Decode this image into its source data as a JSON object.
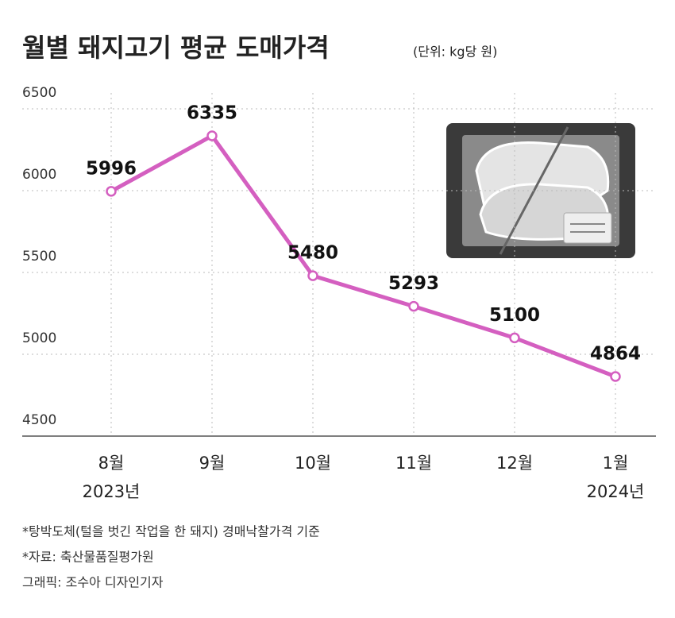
{
  "chart_data": {
    "type": "line",
    "title": "월별 돼지고기 평균 도매가격",
    "subtitle": "(단위: kg당 원)",
    "categories": [
      "8월",
      "9월",
      "10월",
      "11월",
      "12월",
      "1월"
    ],
    "year_labels": [
      "2023년",
      null,
      null,
      null,
      null,
      "2024년"
    ],
    "values": [
      5996,
      6335,
      5480,
      5293,
      5100,
      4864
    ],
    "color": "#d45fc0",
    "ylim": [
      4500,
      6500
    ],
    "yticks": [
      4500,
      5000,
      5500,
      6000,
      6500
    ],
    "grid": true,
    "notes": [
      "*탕박도체(털을 벗긴 작업을 한 돼지) 경매낙찰가격 기준",
      "*자료: 축산물품질평가원",
      "그래픽: 조수아 디자인기자"
    ]
  }
}
